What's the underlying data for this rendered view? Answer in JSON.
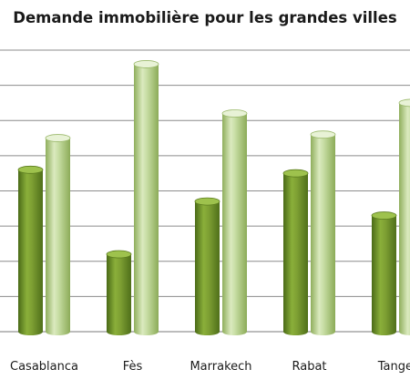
{
  "chart_data": {
    "type": "bar",
    "title": "Demande immobilière pour les grandes villes",
    "xlabel": "",
    "ylabel": "",
    "categories": [
      "Casablanca",
      "Fès",
      "Marrakech",
      "Rabat",
      "Tanger"
    ],
    "series": [
      {
        "values": [
          4.6,
          2.2,
          3.7,
          4.5,
          3.3
        ],
        "color": "#6b8e23"
      },
      {
        "values": [
          5.5,
          7.6,
          6.2,
          5.6,
          6.5
        ],
        "color": "#b2cf86"
      }
    ],
    "ylim": [
      0,
      8
    ],
    "grid": true,
    "legend": "none"
  }
}
